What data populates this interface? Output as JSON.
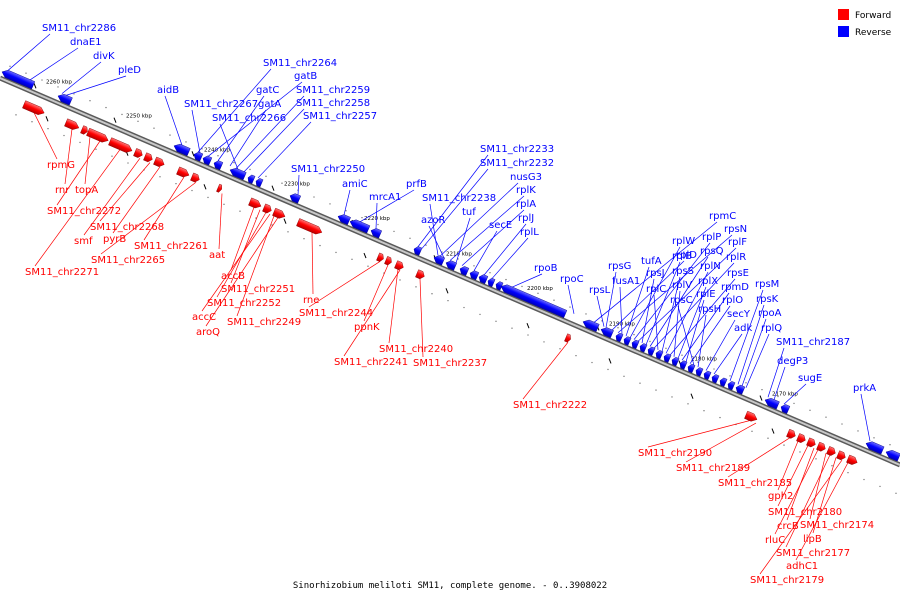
{
  "caption": "Sinorhizobium meliloti SM11, complete genome. - 0..3908022",
  "legend": [
    {
      "label": "Forward",
      "color": "#ff0000"
    },
    {
      "label": "Reverse",
      "color": "#0000ff"
    }
  ],
  "colors": {
    "forward": "#ff0000",
    "reverse": "#0000ff",
    "backbone": "#8c8c8c"
  },
  "ticks": [
    "2260 kbp",
    "2250 kbp",
    "2240 kbp",
    "2230 kbp",
    "2220 kbp",
    "2210 kbp",
    "2200 kbp",
    "2190 kbp",
    "2180 kbp",
    "2170 kbp"
  ],
  "reverse_labels": [
    "SM11_chr2286",
    "dnaE1",
    "divK",
    "pleD",
    "aidB",
    "SM11_chr2264",
    "gatB",
    "SM11_chr2267",
    "gatC",
    "gatA",
    "SM11_chr2259",
    "SM11_chr2258",
    "SM11_chr2266",
    "SM11_chr2257",
    "SM11_chr2250",
    "amiC",
    "prfB",
    "mrcA1",
    "SM11_chr2233",
    "SM11_chr2232",
    "nusG3",
    "rplK",
    "SM11_chr2238",
    "rplA",
    "azoR",
    "tuf",
    "secE",
    "rplJ",
    "rplL",
    "rpoB",
    "rpoC",
    "rpmC",
    "rpsG",
    "rplD",
    "rpsN",
    "fusA1",
    "tufA",
    "rplW",
    "rplP",
    "rplF",
    "rpsL",
    "rpsJ",
    "rplB",
    "rpsQ",
    "rplR",
    "rplC",
    "rpsS",
    "rplN",
    "rpsE",
    "rplV",
    "rplX",
    "rpmD",
    "rplE",
    "rplO",
    "rpsC",
    "rpsH",
    "secY",
    "adk",
    "rpsM",
    "rpsK",
    "rpoA",
    "rplQ",
    "SM11_chr2187",
    "degP3",
    "sugE",
    "prkA"
  ],
  "forward_labels": [
    "rpmG",
    "rnr",
    "topA",
    "SM11_chr2272",
    "smf",
    "SM11_chr2268",
    "pyrB",
    "SM11_chr2261",
    "SM11_chr2265",
    "SM11_chr2271",
    "aat",
    "accB",
    "SM11_chr2251",
    "SM11_chr2252",
    "accC",
    "SM11_chr2249",
    "aroQ",
    "rne",
    "SM11_chr2244",
    "ppnK",
    "SM11_chr2240",
    "SM11_chr2241",
    "SM11_chr2237",
    "SM11_chr2222",
    "SM11_chr2190",
    "SM11_chr2189",
    "SM11_chr2185",
    "gph2",
    "SM11_chr2180",
    "crcB",
    "SM11_chr2174",
    "rluC",
    "lipB",
    "SM11_chr2177",
    "adhC1",
    "SM11_chr2179"
  ]
}
